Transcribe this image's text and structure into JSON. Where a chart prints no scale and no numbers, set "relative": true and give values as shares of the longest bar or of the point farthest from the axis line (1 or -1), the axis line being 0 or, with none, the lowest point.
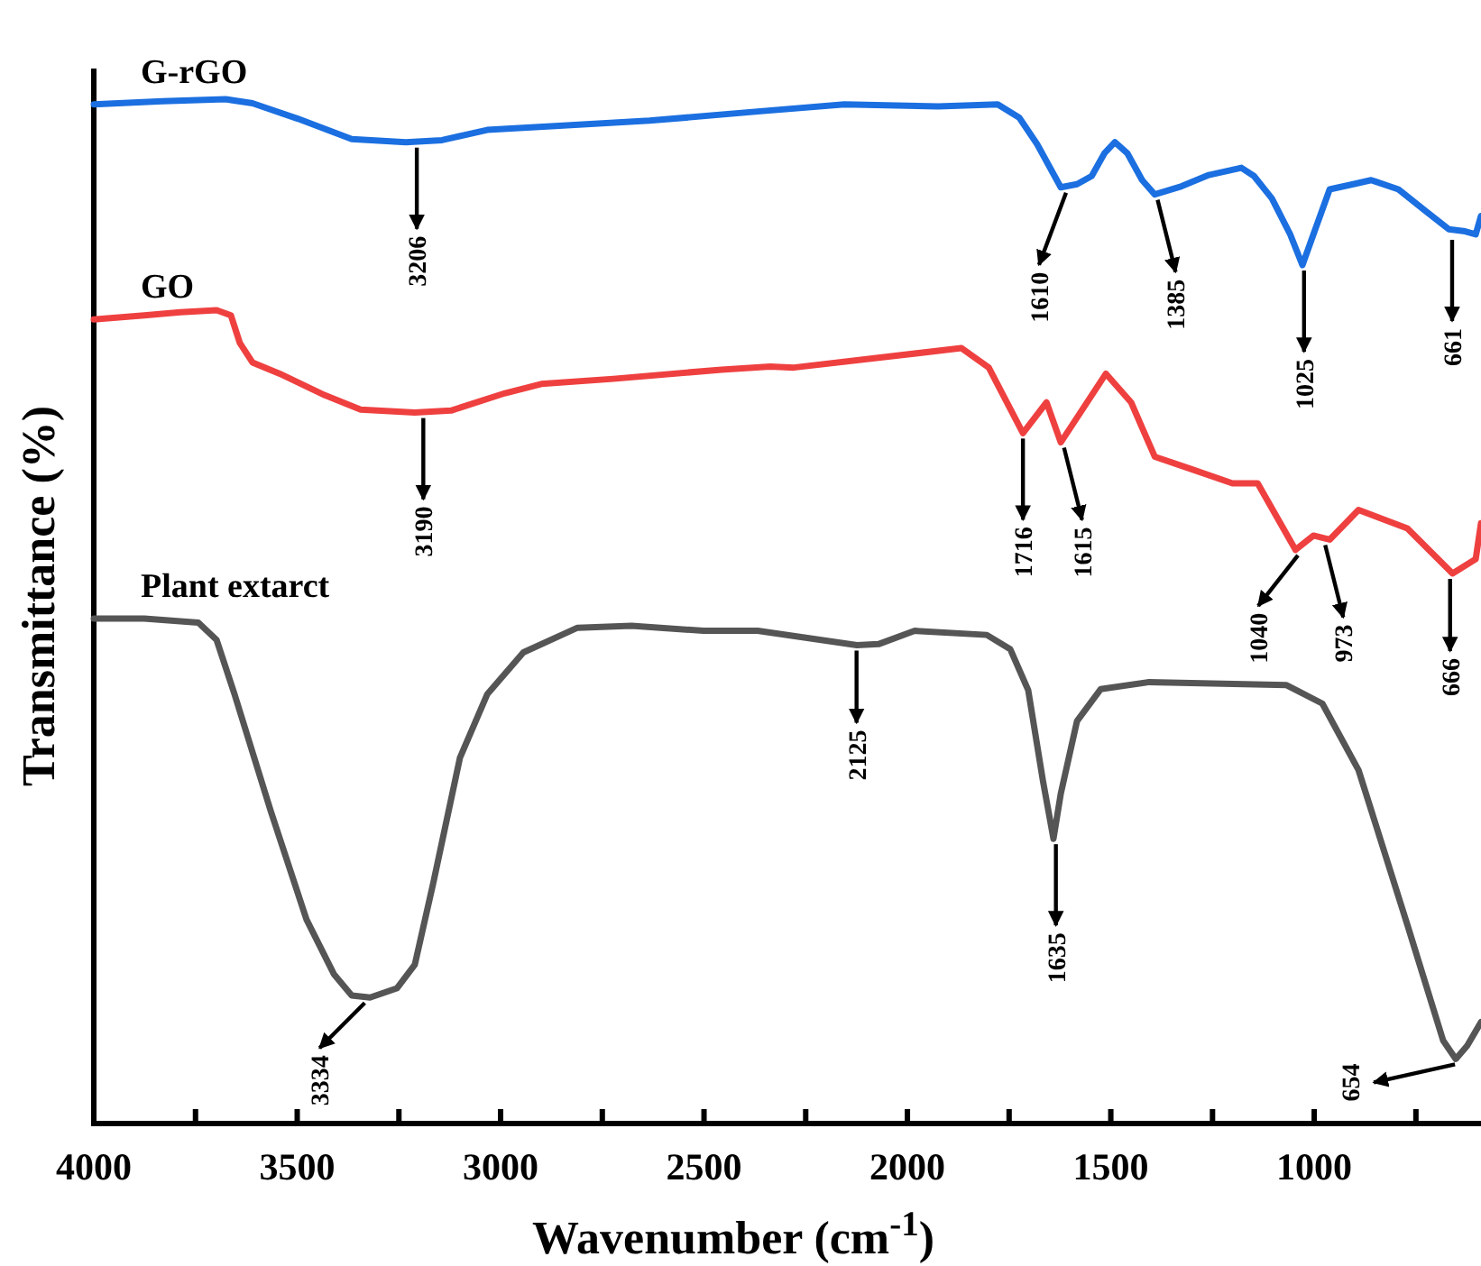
{
  "chart_data": {
    "type": "line",
    "relative": true,
    "xlabel": "Wavenumber (cm$^{-1}$)",
    "ylabel": "Transmittance (%)",
    "xlim": [
      4000,
      590
    ],
    "xticks": [
      4000,
      {
        "value": 3750,
        "label": null
      },
      3500,
      {
        "value": 3250,
        "label": null
      },
      3000,
      {
        "value": 2750,
        "label": null
      },
      2500,
      {
        "value": 2250,
        "label": null
      },
      2000,
      {
        "value": 1750,
        "label": null
      },
      1500,
      {
        "value": 1250,
        "label": null
      },
      1000,
      {
        "value": 750,
        "label": null
      }
    ],
    "series": [
      {
        "name": "G-rGO",
        "color": "#1b6fe0",
        "x": [
          4000,
          3831,
          3676,
          3610,
          3499,
          3366,
          3233,
          3144,
          3033,
          2856,
          2634,
          2368,
          2155,
          1924,
          1778,
          1725,
          1681,
          1623,
          1583,
          1547,
          1516,
          1490,
          1459,
          1423,
          1392,
          1326,
          1259,
          1179,
          1148,
          1104,
          1059,
          1029,
          1002,
          962,
          904,
          860,
          793,
          727,
          669,
          629,
          603,
          590
        ],
        "values": [
          0.995,
          0.998,
          1,
          0.996,
          0.981,
          0.961,
          0.958,
          0.96,
          0.97,
          0.974,
          0.979,
          0.988,
          0.995,
          0.993,
          0.995,
          0.982,
          0.956,
          0.914,
          0.917,
          0.925,
          0.947,
          0.958,
          0.947,
          0.921,
          0.907,
          0.915,
          0.926,
          0.933,
          0.925,
          0.903,
          0.868,
          0.838,
          0.868,
          0.912,
          0.917,
          0.921,
          0.912,
          0.891,
          0.873,
          0.871,
          0.868,
          0.886
        ]
      },
      {
        "name": "GO",
        "color": "#ef4040",
        "x": [
          4000,
          3876,
          3787,
          3698,
          3663,
          3641,
          3610,
          3543,
          3432,
          3344,
          3211,
          3122,
          2989,
          2900,
          2723,
          2457,
          2337,
          2279,
          1867,
          1800,
          1716,
          1658,
          1623,
          1512,
          1450,
          1392,
          1303,
          1201,
          1139,
          1046,
          1002,
          962,
          891,
          771,
          660,
          603,
          590
        ],
        "values": [
          0.785,
          0.789,
          0.792,
          0.794,
          0.789,
          0.762,
          0.743,
          0.732,
          0.711,
          0.697,
          0.694,
          0.696,
          0.713,
          0.722,
          0.727,
          0.736,
          0.739,
          0.738,
          0.757,
          0.738,
          0.674,
          0.704,
          0.665,
          0.732,
          0.704,
          0.651,
          0.639,
          0.625,
          0.625,
          0.56,
          0.574,
          0.57,
          0.599,
          0.581,
          0.537,
          0.551,
          0.586
        ]
      },
      {
        "name": "Plant extarct",
        "color": "#555555",
        "x": [
          4000,
          3876,
          3743,
          3698,
          3654,
          3565,
          3477,
          3410,
          3366,
          3321,
          3255,
          3211,
          3166,
          3100,
          3033,
          2944,
          2811,
          2678,
          2501,
          2368,
          2124,
          2071,
          1982,
          1805,
          1747,
          1703,
          1667,
          1641,
          1623,
          1583,
          1525,
          1406,
          1068,
          980,
          891,
          771,
          683,
          652,
          624,
          590
        ],
        "values": [
          0.493,
          0.493,
          0.489,
          0.472,
          0.419,
          0.305,
          0.199,
          0.146,
          0.125,
          0.123,
          0.132,
          0.155,
          0.234,
          0.357,
          0.419,
          0.46,
          0.484,
          0.486,
          0.481,
          0.481,
          0.467,
          0.468,
          0.481,
          0.477,
          0.463,
          0.423,
          0.335,
          0.278,
          0.322,
          0.393,
          0.424,
          0.431,
          0.428,
          0.41,
          0.345,
          0.194,
          0.081,
          0.063,
          0.076,
          0.099
        ]
      }
    ],
    "annotations": [
      {
        "text": "3206",
        "x": 3206,
        "y": 0.958
      },
      {
        "text": "1610",
        "x": 1610,
        "y": 0.914
      },
      {
        "text": "1385",
        "x": 1385,
        "y": 0.907
      },
      {
        "text": "1025",
        "x": 1025,
        "y": 0.838
      },
      {
        "text": "661",
        "x": 661,
        "y": 0.868
      },
      {
        "text": "3190",
        "x": 3190,
        "y": 0.694
      },
      {
        "text": "1716",
        "x": 1716,
        "y": 0.674
      },
      {
        "text": "1615",
        "x": 1615,
        "y": 0.665
      },
      {
        "text": "1040",
        "x": 1040,
        "y": 0.56
      },
      {
        "text": "973",
        "x": 973,
        "y": 0.57
      },
      {
        "text": "666",
        "x": 666,
        "y": 0.537
      },
      {
        "text": "3334",
        "x": 3334,
        "y": 0.123
      },
      {
        "text": "2125",
        "x": 2125,
        "y": 0.467
      },
      {
        "text": "1635",
        "x": 1635,
        "y": 0.278
      },
      {
        "text": "654",
        "x": 654,
        "y": 0.063
      }
    ]
  }
}
